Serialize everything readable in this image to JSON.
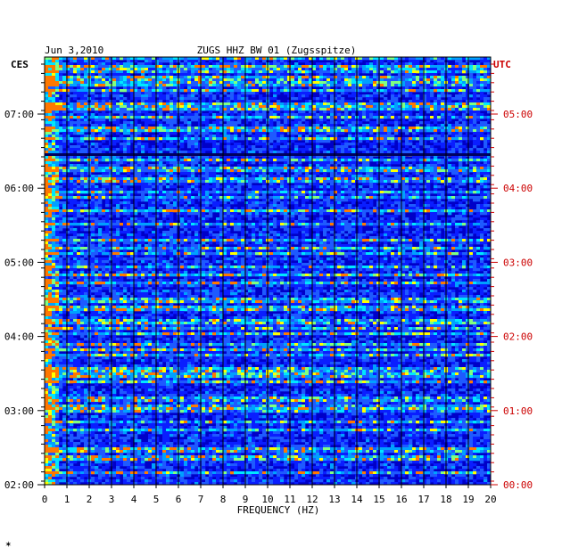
{
  "chart_data": {
    "type": "heatmap",
    "date": "Jun 3,2010",
    "title": "ZUGS HHZ BW 01 (Zugsspitze)",
    "left_timezone": "CES",
    "right_timezone": "UTC",
    "xlabel": "FREQUENCY (HZ)",
    "xlim": [
      0,
      20
    ],
    "x_ticks": [
      "0",
      "1",
      "2",
      "3",
      "4",
      "5",
      "6",
      "7",
      "8",
      "9",
      "10",
      "11",
      "12",
      "13",
      "14",
      "15",
      "16",
      "17",
      "18",
      "19",
      "20"
    ],
    "y_ticks_left": [
      "07:00",
      "06:00",
      "05:00",
      "04:00",
      "03:00",
      "02:00"
    ],
    "y_ticks_right": [
      "05:00",
      "04:00",
      "03:00",
      "02:00",
      "01:00",
      "00:00"
    ],
    "time_range_utc": [
      "00:00",
      "06:00"
    ],
    "grid": true,
    "colors": {
      "background": "#0000c8",
      "low": "#0a28ff",
      "mid": "#00c8ff",
      "high": "#ffff00",
      "peak": "#ff6000",
      "grid": "#000000",
      "utc_text": "#cc0000"
    }
  },
  "footer_mark": "✶"
}
